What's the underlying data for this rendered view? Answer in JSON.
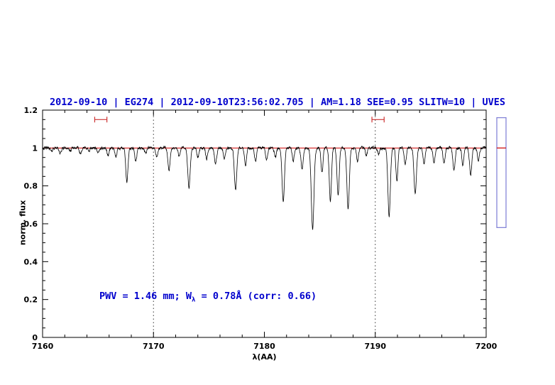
{
  "figure": {
    "background": "#ffffff"
  },
  "chart_data": {
    "type": "line",
    "title": "2012-09-10 | EG274 | 2012-09-10T23:56:02.705 | AM=1.18  SEE=0.95  SLITW=10 | UVES",
    "title_color": "#0000cd",
    "xlabel": "λ(AA)",
    "ylabel": "norm. flux",
    "xlim": [
      7160,
      7200
    ],
    "ylim": [
      0,
      1.2
    ],
    "xticks": [
      7160,
      7170,
      7180,
      7190,
      7200
    ],
    "xtick_labels": [
      "7160",
      "7170",
      "7180",
      "7190",
      "7200"
    ],
    "x_minor_step": 2,
    "yticks": [
      0,
      0.2,
      0.4,
      0.6,
      0.8,
      1,
      1.2
    ],
    "ytick_labels": [
      "0",
      "0.2",
      "0.4",
      "0.6",
      "0.8",
      "1",
      "1.2"
    ],
    "y_minor_step": 0.05,
    "grid": false,
    "legend": false,
    "dotted_vlines": [
      7170,
      7190
    ],
    "continuum": {
      "level": 1.0,
      "color": "#cc0000"
    },
    "series_color": "#000000",
    "noise_sigma": 0.008,
    "sample_step": 0.02,
    "line_format": [
      "center_AA",
      "depth_normflux",
      "sigma_AA"
    ],
    "absorption_lines": [
      [
        7160.8,
        0.02,
        0.08
      ],
      [
        7161.6,
        0.03,
        0.09
      ],
      [
        7162.5,
        0.02,
        0.08
      ],
      [
        7163.4,
        0.03,
        0.09
      ],
      [
        7164.2,
        0.02,
        0.08
      ],
      [
        7165.0,
        0.03,
        0.09
      ],
      [
        7165.9,
        0.04,
        0.09
      ],
      [
        7166.6,
        0.05,
        0.09
      ],
      [
        7167.6,
        0.18,
        0.1
      ],
      [
        7168.4,
        0.07,
        0.09
      ],
      [
        7169.3,
        0.03,
        0.08
      ],
      [
        7170.3,
        0.05,
        0.09
      ],
      [
        7171.4,
        0.12,
        0.1
      ],
      [
        7172.3,
        0.04,
        0.09
      ],
      [
        7173.2,
        0.21,
        0.11
      ],
      [
        7174.0,
        0.05,
        0.09
      ],
      [
        7174.8,
        0.06,
        0.09
      ],
      [
        7175.6,
        0.08,
        0.1
      ],
      [
        7176.4,
        0.06,
        0.09
      ],
      [
        7177.4,
        0.22,
        0.11
      ],
      [
        7178.3,
        0.09,
        0.09
      ],
      [
        7179.2,
        0.07,
        0.09
      ],
      [
        7180.2,
        0.06,
        0.09
      ],
      [
        7181.0,
        0.05,
        0.09
      ],
      [
        7181.7,
        0.28,
        0.11
      ],
      [
        7182.6,
        0.07,
        0.09
      ],
      [
        7183.4,
        0.11,
        0.1
      ],
      [
        7184.35,
        0.43,
        0.12
      ],
      [
        7185.2,
        0.13,
        0.09
      ],
      [
        7185.95,
        0.28,
        0.1
      ],
      [
        7186.65,
        0.25,
        0.1
      ],
      [
        7187.55,
        0.32,
        0.11
      ],
      [
        7188.4,
        0.07,
        0.09
      ],
      [
        7189.2,
        0.04,
        0.08
      ],
      [
        7190.3,
        0.03,
        0.08
      ],
      [
        7191.25,
        0.36,
        0.11
      ],
      [
        7191.95,
        0.18,
        0.09
      ],
      [
        7192.7,
        0.09,
        0.09
      ],
      [
        7193.6,
        0.24,
        0.11
      ],
      [
        7194.4,
        0.08,
        0.09
      ],
      [
        7195.3,
        0.07,
        0.09
      ],
      [
        7196.2,
        0.08,
        0.09
      ],
      [
        7197.1,
        0.12,
        0.1
      ],
      [
        7197.9,
        0.09,
        0.09
      ],
      [
        7198.6,
        0.14,
        0.1
      ],
      [
        7199.3,
        0.07,
        0.09
      ]
    ],
    "top_markers": [
      {
        "x_start": 7164.7,
        "x_end": 7165.8,
        "y": 1.15,
        "color": "#cc3333"
      },
      {
        "x_start": 7189.7,
        "x_end": 7190.8,
        "y": 1.15,
        "color": "#cc3333"
      }
    ],
    "side_gauge": {
      "flux_top": 1.16,
      "flux_bottom": 0.58,
      "marker_flux": 1.0,
      "border_color": "#7b7bd4",
      "marker_color": "#cc0000"
    },
    "annotation": {
      "part1": "PWV = 1.46 mm; W",
      "subscript": "λ",
      "part2": " = 0.78Å (corr: 0.66)",
      "color": "#0000cd"
    }
  }
}
